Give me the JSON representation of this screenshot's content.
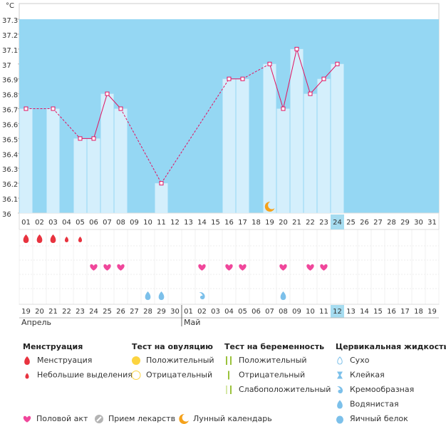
{
  "chart_data": {
    "type": "line",
    "unit": "°C",
    "categories": [
      "01",
      "02",
      "03",
      "04",
      "05",
      "06",
      "07",
      "08",
      "09",
      "10",
      "11",
      "12",
      "13",
      "14",
      "15",
      "16",
      "17",
      "18",
      "19",
      "20",
      "21",
      "22",
      "23",
      "24",
      "25",
      "26",
      "27",
      "28",
      "29",
      "30",
      "31"
    ],
    "values": [
      36.7,
      null,
      36.7,
      null,
      36.5,
      36.5,
      36.8,
      36.7,
      null,
      null,
      36.2,
      null,
      null,
      null,
      null,
      36.9,
      36.9,
      null,
      37.0,
      36.7,
      37.1,
      36.8,
      36.9,
      37.0,
      null,
      null,
      null,
      null,
      null,
      null,
      null
    ],
    "color": "#e2115f",
    "bar_color": "#d4effc",
    "background": "#95d7f3",
    "highlight_color": "#a6dcf0",
    "ylim": [
      36,
      37.3
    ],
    "yticks": [
      36,
      36.1,
      36.2,
      36.3,
      36.4,
      36.5,
      36.6,
      36.7,
      36.8,
      36.9,
      37,
      37.1,
      37.2,
      37.3
    ],
    "highlight": "24",
    "cycle_dates": [
      {
        "label": "19",
        "weekend": true
      },
      {
        "label": "20",
        "weekend": true
      },
      {
        "label": "21",
        "weekend": true
      },
      {
        "label": "22",
        "weekend": false
      },
      {
        "label": "23",
        "weekend": false
      },
      {
        "label": "24",
        "weekend": false
      },
      {
        "label": "25",
        "weekend": true
      },
      {
        "label": "26",
        "weekend": true
      },
      {
        "label": "27",
        "weekend": false
      },
      {
        "label": "28",
        "weekend": false
      },
      {
        "label": "29",
        "weekend": false
      },
      {
        "label": "30",
        "weekend": false
      },
      {
        "label": "01",
        "weekend": false
      },
      {
        "label": "02",
        "weekend": true
      },
      {
        "label": "03",
        "weekend": true
      },
      {
        "label": "04",
        "weekend": false
      },
      {
        "label": "05",
        "weekend": false
      },
      {
        "label": "06",
        "weekend": false
      },
      {
        "label": "07",
        "weekend": false
      },
      {
        "label": "08",
        "weekend": false
      },
      {
        "label": "09",
        "weekend": true
      },
      {
        "label": "10",
        "weekend": true
      },
      {
        "label": "11",
        "weekend": true
      },
      {
        "label": "12",
        "weekend": false
      },
      {
        "label": "13",
        "weekend": false
      },
      {
        "label": "14",
        "weekend": false
      },
      {
        "label": "15",
        "weekend": false
      },
      {
        "label": "16",
        "weekend": true
      },
      {
        "label": "17",
        "weekend": true
      },
      {
        "label": "18",
        "weekend": false
      },
      {
        "label": "19",
        "weekend": false
      }
    ],
    "weekend_color": "#d81b60",
    "highlight_cycle": "12",
    "months": [
      {
        "label": "Апрель",
        "first_date": "19"
      },
      {
        "label": "Май",
        "first_date": "01"
      }
    ]
  },
  "legend": {
    "groups": [
      {
        "title": "Менструация",
        "items": [
          {
            "label": "Менструация",
            "color": "#e8333f",
            "days": [
              "01",
              "02",
              "03"
            ]
          },
          {
            "label": "Небольшие выделения",
            "color": "#e8333f",
            "days": [
              "04",
              "05"
            ]
          }
        ]
      },
      {
        "title": "Тест на овуляцию",
        "items": [
          {
            "label": "Положительный",
            "color": "#fcd440"
          },
          {
            "label": "Отрицательный",
            "color": "#fcd440"
          }
        ]
      },
      {
        "title": "Тест на беременность",
        "items": [
          {
            "label": "Положительный",
            "color": "#9bc23c"
          },
          {
            "label": "Отрицательный",
            "color": "#9bc23c"
          },
          {
            "label": "Слабоположительный",
            "color": "#9bc23c"
          }
        ]
      },
      {
        "title": "Цервикальная жидкость",
        "items": [
          {
            "label": "Сухо",
            "color": "#7cc0ea"
          },
          {
            "label": "Клейкая",
            "color": "#7cc0ea"
          },
          {
            "label": "Кремообразная",
            "color": "#7cc0ea",
            "days": [
              "14"
            ]
          },
          {
            "label": "Водянистая",
            "color": "#7cc0ea",
            "days": [
              "10",
              "11",
              "20"
            ]
          },
          {
            "label": "Яичный белок",
            "color": "#7cc0ea"
          }
        ]
      }
    ],
    "extra": [
      {
        "label": "Половой акт",
        "color": "#f0479b",
        "days": [
          "06",
          "07",
          "08",
          "14",
          "16",
          "17",
          "20",
          "22",
          "23"
        ]
      },
      {
        "label": "Прием лекарств",
        "color": "#b4b4b4"
      },
      {
        "label": "Лунный календарь",
        "color": "#f5a21b",
        "days": [
          "19"
        ]
      }
    ]
  }
}
